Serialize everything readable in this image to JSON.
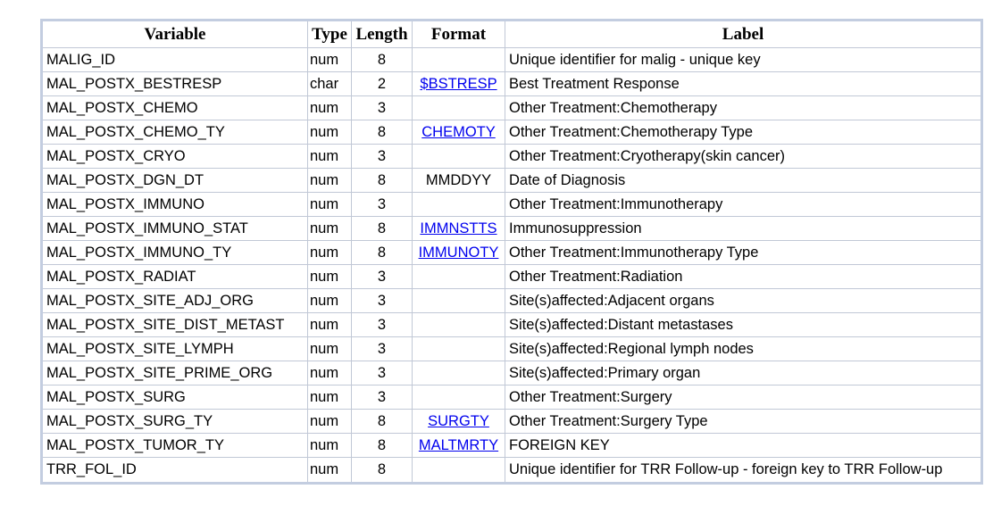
{
  "columns": {
    "variable": "Variable",
    "type": "Type",
    "length": "Length",
    "format": "Format",
    "label": "Label"
  },
  "rows": [
    {
      "variable": "MALIG_ID",
      "type": "num",
      "length": "8",
      "format": "",
      "format_is_link": false,
      "label": "Unique identifier for malig - unique key"
    },
    {
      "variable": "MAL_POSTX_BESTRESP",
      "type": "char",
      "length": "2",
      "format": "$BSTRESP",
      "format_is_link": true,
      "label": "Best Treatment Response"
    },
    {
      "variable": "MAL_POSTX_CHEMO",
      "type": "num",
      "length": "3",
      "format": "",
      "format_is_link": false,
      "label": "Other Treatment:Chemotherapy"
    },
    {
      "variable": "MAL_POSTX_CHEMO_TY",
      "type": "num",
      "length": "8",
      "format": "CHEMOTY",
      "format_is_link": true,
      "label": "Other Treatment:Chemotherapy Type"
    },
    {
      "variable": "MAL_POSTX_CRYO",
      "type": "num",
      "length": "3",
      "format": "",
      "format_is_link": false,
      "label": "Other Treatment:Cryotherapy(skin cancer)"
    },
    {
      "variable": "MAL_POSTX_DGN_DT",
      "type": "num",
      "length": "8",
      "format": "MMDDYY",
      "format_is_link": false,
      "label": "Date of Diagnosis"
    },
    {
      "variable": "MAL_POSTX_IMMUNO",
      "type": "num",
      "length": "3",
      "format": "",
      "format_is_link": false,
      "label": "Other Treatment:Immunotherapy"
    },
    {
      "variable": "MAL_POSTX_IMMUNO_STAT",
      "type": "num",
      "length": "8",
      "format": "IMMNSTTS",
      "format_is_link": true,
      "label": "Immunosuppression"
    },
    {
      "variable": "MAL_POSTX_IMMUNO_TY",
      "type": "num",
      "length": "8",
      "format": "IMMUNOTY",
      "format_is_link": true,
      "label": "Other Treatment:Immunotherapy Type"
    },
    {
      "variable": "MAL_POSTX_RADIAT",
      "type": "num",
      "length": "3",
      "format": "",
      "format_is_link": false,
      "label": "Other Treatment:Radiation"
    },
    {
      "variable": "MAL_POSTX_SITE_ADJ_ORG",
      "type": "num",
      "length": "3",
      "format": "",
      "format_is_link": false,
      "label": "Site(s)affected:Adjacent organs"
    },
    {
      "variable": "MAL_POSTX_SITE_DIST_METAST",
      "type": "num",
      "length": "3",
      "format": "",
      "format_is_link": false,
      "label": "Site(s)affected:Distant metastases"
    },
    {
      "variable": "MAL_POSTX_SITE_LYMPH",
      "type": "num",
      "length": "3",
      "format": "",
      "format_is_link": false,
      "label": "Site(s)affected:Regional lymph nodes"
    },
    {
      "variable": "MAL_POSTX_SITE_PRIME_ORG",
      "type": "num",
      "length": "3",
      "format": "",
      "format_is_link": false,
      "label": "Site(s)affected:Primary organ"
    },
    {
      "variable": "MAL_POSTX_SURG",
      "type": "num",
      "length": "3",
      "format": "",
      "format_is_link": false,
      "label": "Other Treatment:Surgery"
    },
    {
      "variable": "MAL_POSTX_SURG_TY",
      "type": "num",
      "length": "8",
      "format": "SURGTY",
      "format_is_link": true,
      "label": "Other Treatment:Surgery Type"
    },
    {
      "variable": "MAL_POSTX_TUMOR_TY",
      "type": "num",
      "length": "8",
      "format": "MALTMRTY",
      "format_is_link": true,
      "label": "FOREIGN KEY"
    },
    {
      "variable": "TRR_FOL_ID",
      "type": "num",
      "length": "8",
      "format": "",
      "format_is_link": false,
      "label": "Unique identifier for TRR Follow-up - foreign key to TRR Follow-up"
    }
  ],
  "colors": {
    "link": "#0000ee",
    "outer_border": "#c3cde0",
    "cell_border": "#c1c8d6"
  }
}
